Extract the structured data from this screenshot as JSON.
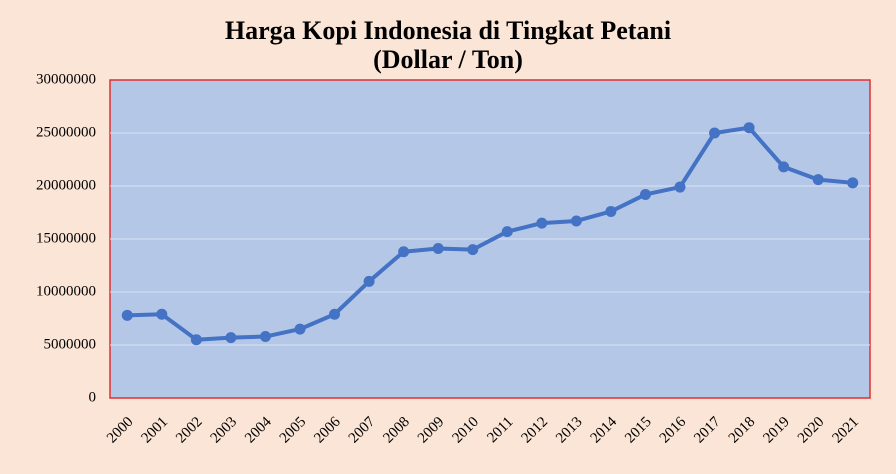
{
  "chart_data": {
    "type": "line",
    "title": "Harga Kopi Indonesia di Tingkat Petani",
    "subtitle": "(Dollar / Ton)",
    "categories": [
      "2000",
      "2001",
      "2002",
      "2003",
      "2004",
      "2005",
      "2006",
      "2007",
      "2008",
      "2009",
      "2010",
      "2011",
      "2012",
      "2013",
      "2014",
      "2015",
      "2016",
      "2017",
      "2018",
      "2019",
      "2020",
      "2021"
    ],
    "series": [
      {
        "name": "Harga",
        "color": "#4472c4",
        "values": [
          7800000,
          7900000,
          5500000,
          5700000,
          5800000,
          6500000,
          7900000,
          11000000,
          13800000,
          14100000,
          14000000,
          15700000,
          16500000,
          16700000,
          17600000,
          19200000,
          19900000,
          25000000,
          25500000,
          21800000,
          20600000,
          20300000
        ]
      }
    ],
    "ylim": [
      0,
      30000000
    ],
    "yticks": [
      0,
      5000000,
      10000000,
      15000000,
      20000000,
      25000000,
      30000000
    ],
    "grid": true
  }
}
